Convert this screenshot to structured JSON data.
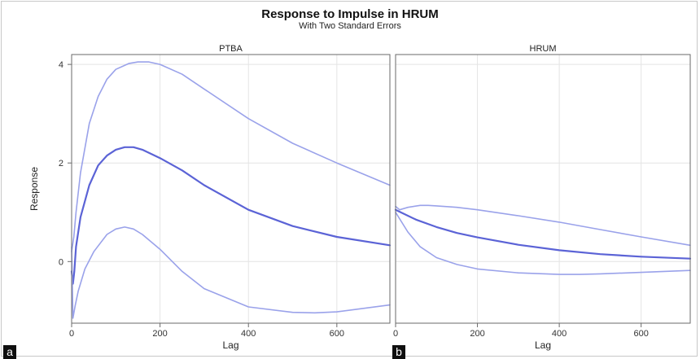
{
  "title": "Response to Impulse in HRUM",
  "subtitle": "With Two Standard Errors",
  "ylabel": "Response",
  "colors": {
    "line": "#5b63d6",
    "band": "#9aa2ea",
    "grid": "#e4e4e4",
    "axis": "#6a6a6a"
  },
  "panel_labels": [
    "a",
    "b"
  ],
  "chart_data": [
    {
      "type": "line",
      "title": "PTBA",
      "xlabel": "Lag",
      "ylabel": "Response",
      "xlim": [
        0,
        720
      ],
      "ylim": [
        -1.25,
        4.2
      ],
      "xticks": [
        0,
        200,
        400,
        600
      ],
      "yticks": [
        0,
        2,
        4
      ],
      "grid": true,
      "series": [
        {
          "role": "upper",
          "x": [
            0,
            5,
            10,
            20,
            40,
            60,
            80,
            100,
            130,
            150,
            175,
            200,
            250,
            300,
            400,
            500,
            600,
            720
          ],
          "y": [
            0.2,
            0.5,
            1.0,
            1.8,
            2.8,
            3.35,
            3.7,
            3.9,
            4.02,
            4.05,
            4.05,
            4.0,
            3.8,
            3.5,
            2.9,
            2.4,
            2.0,
            1.55
          ]
        },
        {
          "role": "estimate",
          "x": [
            0,
            3,
            6,
            10,
            20,
            40,
            60,
            80,
            100,
            120,
            140,
            160,
            200,
            250,
            300,
            400,
            500,
            600,
            720
          ],
          "y": [
            -0.2,
            -0.45,
            -0.2,
            0.3,
            0.9,
            1.55,
            1.95,
            2.15,
            2.27,
            2.32,
            2.32,
            2.27,
            2.1,
            1.85,
            1.55,
            1.05,
            0.72,
            0.5,
            0.33
          ]
        },
        {
          "role": "lower",
          "x": [
            0,
            3,
            8,
            15,
            30,
            50,
            80,
            100,
            120,
            140,
            160,
            200,
            250,
            300,
            400,
            500,
            550,
            600,
            720
          ],
          "y": [
            0.3,
            -1.15,
            -0.9,
            -0.6,
            -0.15,
            0.2,
            0.55,
            0.66,
            0.7,
            0.66,
            0.55,
            0.25,
            -0.2,
            -0.55,
            -0.92,
            -1.03,
            -1.04,
            -1.02,
            -0.88
          ]
        }
      ]
    },
    {
      "type": "line",
      "title": "HRUM",
      "xlabel": "Lag",
      "ylabel": "",
      "xlim": [
        0,
        720
      ],
      "ylim": [
        -1.25,
        4.2
      ],
      "xticks": [
        0,
        200,
        400,
        600
      ],
      "yticks": [],
      "grid": true,
      "series": [
        {
          "role": "upper",
          "x": [
            0,
            10,
            30,
            60,
            80,
            100,
            150,
            200,
            300,
            400,
            500,
            600,
            720
          ],
          "y": [
            1.12,
            1.05,
            1.1,
            1.14,
            1.14,
            1.13,
            1.1,
            1.05,
            0.93,
            0.8,
            0.65,
            0.5,
            0.33
          ]
        },
        {
          "role": "estimate",
          "x": [
            0,
            50,
            100,
            150,
            200,
            300,
            400,
            500,
            600,
            720
          ],
          "y": [
            1.05,
            0.85,
            0.7,
            0.58,
            0.49,
            0.34,
            0.23,
            0.15,
            0.1,
            0.06
          ]
        },
        {
          "role": "lower",
          "x": [
            0,
            30,
            60,
            100,
            150,
            200,
            300,
            400,
            450,
            500,
            600,
            720
          ],
          "y": [
            1.0,
            0.6,
            0.3,
            0.08,
            -0.06,
            -0.15,
            -0.23,
            -0.26,
            -0.26,
            -0.25,
            -0.22,
            -0.18
          ]
        }
      ]
    }
  ]
}
